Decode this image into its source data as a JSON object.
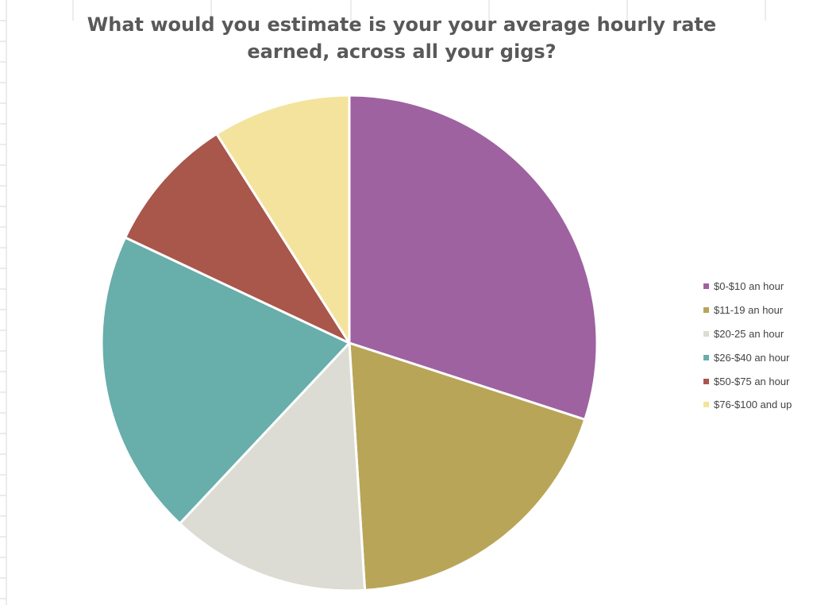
{
  "chart_data": {
    "type": "pie",
    "title": "What would you estimate is your your average hourly rate\nearned, across all your gigs?",
    "categories": [
      "$0-$10 an hour",
      "$11-19 an hour",
      "$20-25 an hour",
      "$26-$40 an hour",
      "$50-$75 an hour",
      "$76-$100 and up"
    ],
    "values": [
      30,
      19,
      13,
      20,
      9,
      9
    ],
    "colors": [
      "#9e62a0",
      "#b9a558",
      "#dcdcd4",
      "#68aeab",
      "#a9564b",
      "#f4e39c"
    ],
    "legend_position": "right"
  }
}
